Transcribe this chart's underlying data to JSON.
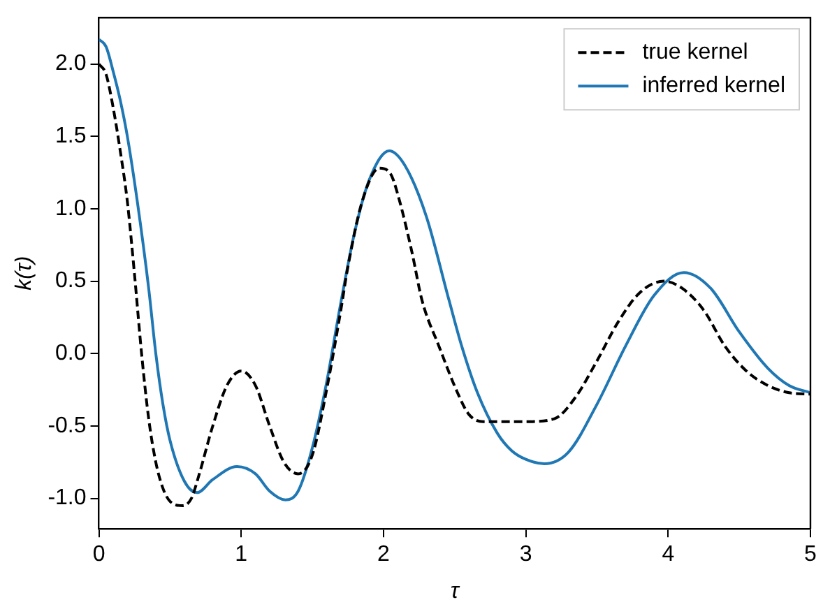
{
  "chart_data": {
    "type": "line",
    "xlabel": "τ",
    "ylabel": "k(τ)",
    "xlim": [
      0,
      5
    ],
    "ylim": [
      -1.21,
      2.32
    ],
    "xticks": [
      0,
      1,
      2,
      3,
      4,
      5
    ],
    "yticks": [
      {
        "value": -1,
        "label": "-1.0"
      },
      -0.5,
      {
        "value": 0,
        "label": "0.0"
      },
      0.5,
      {
        "value": 1,
        "label": "1.0"
      },
      1.5,
      {
        "value": 2,
        "label": "2.0"
      }
    ],
    "grid": false,
    "legend": "top right",
    "marker": "none",
    "series": [
      {
        "name": "true kernel",
        "color": "#000000",
        "line_style": "dashed",
        "x": [
          0,
          0.05,
          0.1,
          0.15,
          0.2,
          0.25,
          0.3,
          0.35,
          0.4,
          0.45,
          0.5,
          0.59,
          0.65,
          0.7,
          0.8,
          0.9,
          1.0,
          1.1,
          1.2,
          1.3,
          1.4,
          1.5,
          1.6,
          1.7,
          1.75,
          1.85,
          1.97,
          2.05,
          2.1,
          2.2,
          2.27,
          2.39,
          2.52,
          2.6,
          2.7,
          3.0,
          3.2,
          3.35,
          3.5,
          3.65,
          3.8,
          3.97,
          4.1,
          4.25,
          4.4,
          4.55,
          4.7,
          4.85,
          5.0
        ],
        "values": [
          2.0,
          1.93,
          1.7,
          1.4,
          1.05,
          0.55,
          0.0,
          -0.45,
          -0.75,
          -0.93,
          -1.02,
          -1.05,
          -1.0,
          -0.85,
          -0.5,
          -0.22,
          -0.12,
          -0.22,
          -0.5,
          -0.75,
          -0.83,
          -0.7,
          -0.25,
          0.3,
          0.6,
          1.05,
          1.28,
          1.24,
          1.1,
          0.7,
          0.37,
          0.05,
          -0.27,
          -0.42,
          -0.47,
          -0.47,
          -0.45,
          -0.3,
          -0.05,
          0.22,
          0.42,
          0.5,
          0.45,
          0.3,
          0.05,
          -0.12,
          -0.22,
          -0.27,
          -0.28
        ]
      },
      {
        "name": "inferred kernel",
        "color": "#1f77b4",
        "line_style": "solid",
        "x": [
          0,
          0.05,
          0.1,
          0.15,
          0.2,
          0.27,
          0.35,
          0.4,
          0.45,
          0.5,
          0.6,
          0.69,
          0.8,
          0.97,
          1.1,
          1.2,
          1.31,
          1.4,
          1.5,
          1.6,
          1.7,
          1.8,
          1.9,
          2.04,
          2.15,
          2.3,
          2.46,
          2.55,
          2.66,
          2.8,
          2.9,
          3.0,
          3.13,
          3.3,
          3.5,
          3.7,
          3.9,
          4.11,
          4.3,
          4.5,
          4.7,
          4.85,
          5.0
        ],
        "values": [
          2.17,
          2.12,
          1.95,
          1.75,
          1.5,
          1.05,
          0.45,
          0.0,
          -0.35,
          -0.6,
          -0.88,
          -0.96,
          -0.87,
          -0.78,
          -0.83,
          -0.95,
          -1.01,
          -0.95,
          -0.65,
          -0.2,
          0.35,
          0.85,
          1.2,
          1.4,
          1.3,
          0.95,
          0.37,
          0.05,
          -0.27,
          -0.55,
          -0.67,
          -0.73,
          -0.76,
          -0.68,
          -0.35,
          0.05,
          0.4,
          0.56,
          0.45,
          0.15,
          -0.1,
          -0.22,
          -0.27
        ]
      }
    ]
  }
}
